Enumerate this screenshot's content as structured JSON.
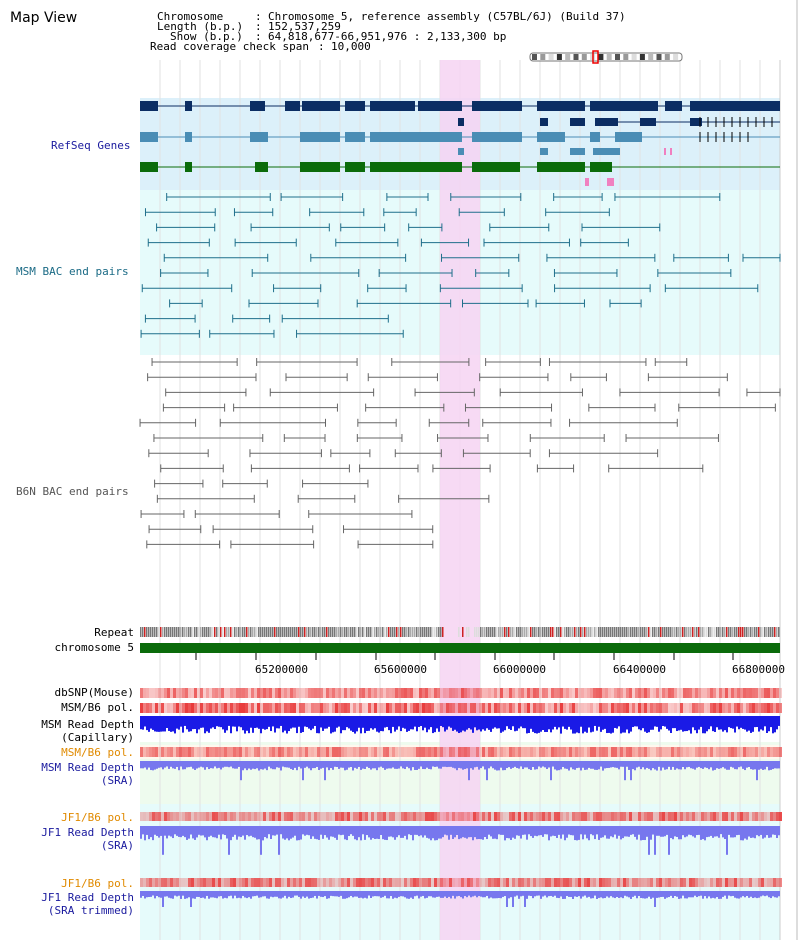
{
  "page_title": "Map View",
  "header": {
    "chromosome_key": "Chromosome",
    "chromosome_val": "Chromosome 5, reference assembly (C57BL/6J) (Build 37)",
    "length_key": "Length (b.p.)",
    "length_val": "152,537,259",
    "show_key": "Show (b.p.)",
    "show_val": "64,818,677-66,951,976 : 2,133,300 bp",
    "span_key": "Read coverage check span",
    "span_val": "10,000"
  },
  "tracks": {
    "refseq": "RefSeq Genes",
    "msm_bac": "MSM BAC end pairs",
    "b6n_bac": "B6N BAC end pairs",
    "repeat": "Repeat",
    "chromosome": "chromosome 5",
    "dbsnp": "dbSNP(Mouse)",
    "msm_b6_pol_1": "MSM/B6 pol.",
    "msm_depth_cap_1": "MSM Read Depth",
    "msm_depth_cap_2": "(Capillary)",
    "msm_b6_pol_2": "MSM/B6 pol.",
    "msm_depth_sra_1": "MSM Read Depth",
    "msm_depth_sra_2": "(SRA)",
    "jf1_b6_pol_1": "JF1/B6 pol.",
    "jf1_depth_sra_1": "JF1 Read Depth",
    "jf1_depth_sra_2": "(SRA)",
    "jf1_b6_pol_2": "JF1/B6 pol.",
    "jf1_depth_trim_1": "JF1 Read Depth",
    "jf1_depth_trim_2": "(SRA trimmed)"
  },
  "axis": {
    "ticks": [
      "65200000",
      "65600000",
      "66000000",
      "66400000",
      "66800000"
    ]
  },
  "colors": {
    "gene_dark": "#0b2d63",
    "gene_mid": "#4a8db5",
    "gene_green": "#0b6b0b",
    "msm_bac": "#1f6f8b",
    "b6n_bac": "#666666",
    "highlight": "#f6d3f2",
    "chrom_bar": "#0b6b0b",
    "depth_cap": "#1a1ae6",
    "depth_sra": "#7777ee",
    "pol_red": "#e83a3a",
    "label_blue": "#1a1a9e",
    "label_orange": "#e08a00",
    "label_teal": "#1a6a85"
  }
}
